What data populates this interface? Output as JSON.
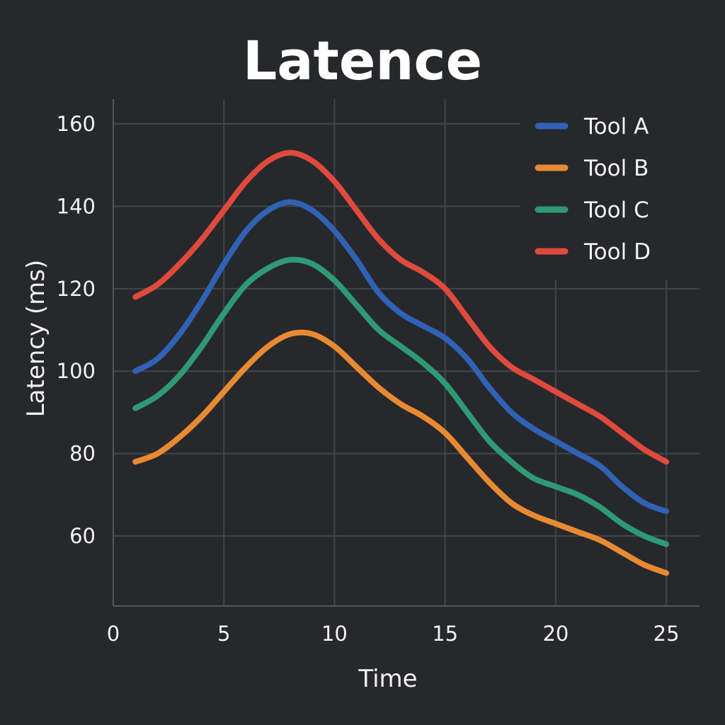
{
  "chart_data": {
    "type": "line",
    "title": "Latence",
    "xlabel": "Time",
    "ylabel": "Latency (ms)",
    "xlim": [
      0,
      26.5
    ],
    "ylim": [
      43,
      166
    ],
    "x_ticks": [
      0,
      5,
      10,
      15,
      20,
      25
    ],
    "y_ticks": [
      60,
      80,
      100,
      120,
      140,
      160
    ],
    "grid": true,
    "legend_position": "top-right",
    "x": [
      1,
      2,
      3,
      4,
      5,
      6,
      7,
      8,
      9,
      10,
      11,
      12,
      13,
      14,
      15,
      16,
      17,
      18,
      19,
      20,
      21,
      22,
      23,
      24,
      25
    ],
    "series": [
      {
        "name": "Tool A",
        "color": "#2f62b4",
        "values": [
          100,
          103,
          109,
          117,
          126,
          134,
          139,
          141,
          139,
          134,
          127,
          119,
          114,
          111,
          108,
          103,
          96,
          90,
          86,
          83,
          80,
          77,
          72,
          68,
          66
        ]
      },
      {
        "name": "Tool B",
        "color": "#e98a32",
        "values": [
          78,
          80,
          84,
          89,
          95,
          101,
          106,
          109,
          109,
          106,
          101,
          96,
          92,
          89,
          85,
          79,
          73,
          68,
          65,
          63,
          61,
          59,
          56,
          53,
          51
        ]
      },
      {
        "name": "Tool C",
        "color": "#2e9a73",
        "values": [
          91,
          94,
          99,
          106,
          114,
          121,
          125,
          127,
          126,
          122,
          116,
          110,
          106,
          102,
          97,
          90,
          83,
          78,
          74,
          72,
          70,
          67,
          63,
          60,
          58
        ]
      },
      {
        "name": "Tool D",
        "color": "#de4a3c",
        "values": [
          118,
          121,
          126,
          132,
          139,
          146,
          151,
          153,
          151,
          146,
          139,
          132,
          127,
          124,
          120,
          113,
          106,
          101,
          98,
          95,
          92,
          89,
          85,
          81,
          78
        ]
      }
    ]
  }
}
